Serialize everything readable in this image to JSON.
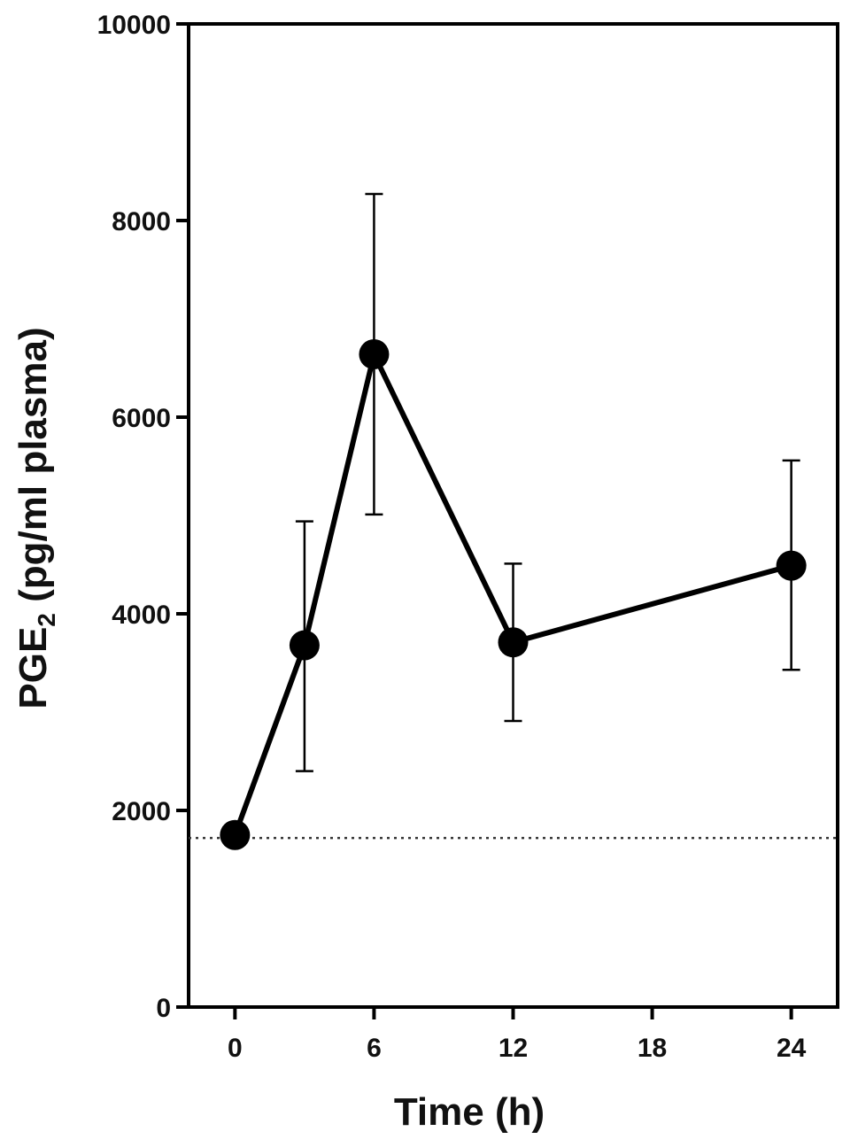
{
  "chart_data": {
    "type": "line",
    "xlabel": "Time (h)",
    "ylabel": {
      "prefix": "PGE",
      "subscript": "2",
      "suffix": " (pg/ml plasma)"
    },
    "xlim": [
      -2,
      26
    ],
    "ylim": [
      0,
      10000
    ],
    "xticks": [
      "0",
      "6",
      "12",
      "18",
      "24"
    ],
    "yticks": [
      "0",
      "2000",
      "4000",
      "6000",
      "8000",
      "10000"
    ],
    "grid": false,
    "series": [
      {
        "x": [
          0,
          3,
          6,
          12,
          24
        ],
        "y": [
          1750,
          3680,
          6640,
          3710,
          4490
        ],
        "error_high": [
          null,
          4940,
          8270,
          4510,
          5560
        ],
        "error_low": [
          null,
          2400,
          5010,
          2910,
          3430
        ]
      }
    ],
    "reference_line": {
      "y": 1720,
      "style": "dotted"
    },
    "colors": {
      "line": "#000000",
      "marker": "#000000",
      "axis": "#000000"
    }
  }
}
